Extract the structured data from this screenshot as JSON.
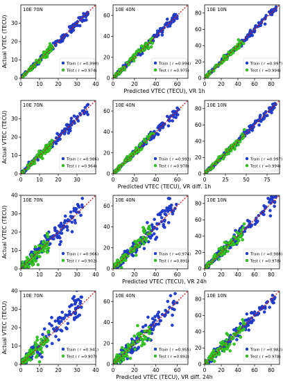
{
  "figure": {
    "rows": [
      {
        "xlabel": "Predicted VTEC (TECU), VR 1h"
      },
      {
        "xlabel": "Predicted VTEC (TECU), VR diff. 1h"
      },
      {
        "xlabel": "Predicted VTEC (TECU), VR 24h"
      },
      {
        "xlabel": "Predicted VTEC (TECU), VR diff. 24h"
      }
    ],
    "ylabel": "Actual VTEC (TECU)",
    "legend_train": "Train",
    "legend_test": "Test",
    "colors": {
      "train": "#1f3fd6",
      "train_edge": "#17289a",
      "test": "#33cc22",
      "test_edge": "#1f8a12",
      "diagonal": "#cc1a1a"
    }
  },
  "chart_data": [
    {
      "type": "scatter",
      "row": 0,
      "col": 0,
      "title": "10E 70N",
      "xlim": [
        0,
        40
      ],
      "ylim": [
        0,
        40
      ],
      "xticks": [
        0,
        10,
        20,
        30,
        40
      ],
      "yticks": [
        0,
        10,
        20,
        30
      ],
      "train_max": 36,
      "test_max": 17,
      "train_spread": 1.1,
      "test_spread": 0.9,
      "train_r": "Train ( r =0.990)",
      "test_r": "Test ( r =0.974)"
    },
    {
      "type": "scatter",
      "row": 0,
      "col": 1,
      "title": "10E 40N",
      "xlim": [
        0,
        70
      ],
      "ylim": [
        0,
        70
      ],
      "xticks": [
        0,
        20,
        40,
        60
      ],
      "yticks": [
        0,
        20,
        40,
        60
      ],
      "train_max": 62,
      "test_max": 38,
      "train_spread": 1.8,
      "test_spread": 1.8,
      "train_r": "Train ( r =0.994)",
      "test_r": "Test ( r =0.975)"
    },
    {
      "type": "scatter",
      "row": 0,
      "col": 2,
      "title": "10E 10N",
      "xlim": [
        0,
        90
      ],
      "ylim": [
        0,
        90
      ],
      "xticks": [
        0,
        20,
        40,
        60,
        80
      ],
      "yticks": [
        0,
        20,
        40,
        60,
        80
      ],
      "train_max": 86,
      "test_max": 48,
      "train_spread": 2,
      "test_spread": 2.3,
      "train_r": "Train ( r =0.997)",
      "test_r": "Test ( r =0.994)"
    },
    {
      "type": "scatter",
      "row": 1,
      "col": 0,
      "title": "10E 70N",
      "xlim": [
        0,
        40
      ],
      "ylim": [
        0,
        40
      ],
      "xticks": [
        0,
        10,
        20,
        30
      ],
      "yticks": [
        0,
        10,
        20,
        30
      ],
      "train_max": 36,
      "test_max": 17,
      "train_spread": 1.3,
      "test_spread": 1.1,
      "train_r": "Train ( r =0.986)",
      "test_r": "Test ( r =0.964)"
    },
    {
      "type": "scatter",
      "row": 1,
      "col": 1,
      "title": "10E 40N",
      "xlim": [
        0,
        70
      ],
      "ylim": [
        0,
        70
      ],
      "xticks": [
        0,
        20,
        40,
        60
      ],
      "yticks": [
        0,
        20,
        40,
        60
      ],
      "train_max": 62,
      "test_max": 38,
      "train_spread": 2,
      "test_spread": 2,
      "train_r": "Train ( r =0.993)",
      "test_r": "Test ( r =0.978)"
    },
    {
      "type": "scatter",
      "row": 1,
      "col": 2,
      "title": "10E 10N",
      "xlim": [
        0,
        90
      ],
      "ylim": [
        0,
        90
      ],
      "xticks": [
        0,
        25,
        50,
        75
      ],
      "yticks": [
        0,
        20,
        40,
        60,
        80
      ],
      "train_max": 86,
      "test_max": 48,
      "train_spread": 2,
      "test_spread": 2.3,
      "train_r": "Train ( r =0.997)",
      "test_r": "Test ( r =0.994)"
    },
    {
      "type": "scatter",
      "row": 2,
      "col": 0,
      "title": "10E 70N",
      "xlim": [
        0,
        40
      ],
      "ylim": [
        0,
        40
      ],
      "xticks": [
        0,
        10,
        20,
        30,
        40
      ],
      "yticks": [
        0,
        10,
        20,
        30,
        40
      ],
      "train_max": 33,
      "test_max": 15,
      "train_spread": 3,
      "test_spread": 2.5,
      "train_r": "Train ( r =0.966)",
      "test_r": "Test ( r =0.902)"
    },
    {
      "type": "scatter",
      "row": 2,
      "col": 1,
      "title": "10E 40N",
      "xlim": [
        0,
        70
      ],
      "ylim": [
        0,
        70
      ],
      "xticks": [
        0,
        20,
        40,
        60
      ],
      "yticks": [
        0,
        20,
        40,
        60
      ],
      "train_max": 60,
      "test_max": 35,
      "train_spread": 5,
      "test_spread": 4.5,
      "train_r": "Train ( r =0.974)",
      "test_r": "Test ( r =0.891)"
    },
    {
      "type": "scatter",
      "row": 2,
      "col": 2,
      "title": "10E 10N",
      "xlim": [
        0,
        90
      ],
      "ylim": [
        0,
        90
      ],
      "xticks": [
        0,
        20,
        40,
        60,
        80
      ],
      "yticks": [
        0,
        20,
        40,
        60,
        80
      ],
      "train_max": 86,
      "test_max": 48,
      "train_spread": 5,
      "test_spread": 4.5,
      "train_r": "Train ( r =0.988)",
      "test_r": "Test ( r =0.978)"
    },
    {
      "type": "scatter",
      "row": 3,
      "col": 0,
      "title": "10E 70N",
      "xlim": [
        0,
        40
      ],
      "ylim": [
        0,
        40
      ],
      "xticks": [
        0,
        10,
        20,
        30,
        40
      ],
      "yticks": [
        0,
        10,
        20,
        30,
        40
      ],
      "train_max": 33,
      "test_max": 15,
      "train_spread": 3.4,
      "test_spread": 2.6,
      "train_r": "Train ( r =0.941)",
      "test_r": "Test ( r =0.907)"
    },
    {
      "type": "scatter",
      "row": 3,
      "col": 1,
      "title": "10E 40N",
      "xlim": [
        0,
        70
      ],
      "ylim": [
        0,
        70
      ],
      "xticks": [
        0,
        20,
        40,
        60
      ],
      "yticks": [
        0,
        20,
        40,
        60
      ],
      "train_max": 60,
      "test_max": 35,
      "train_spread": 5.5,
      "test_spread": 5,
      "train_r": "Train ( r =0.955)",
      "test_r": "Test ( r =0.892)"
    },
    {
      "type": "scatter",
      "row": 3,
      "col": 2,
      "title": "10E 10N",
      "xlim": [
        0,
        90
      ],
      "ylim": [
        0,
        90
      ],
      "xticks": [
        0,
        20,
        40,
        60,
        80
      ],
      "yticks": [
        0,
        20,
        40,
        60,
        80
      ],
      "train_max": 86,
      "test_max": 48,
      "train_spread": 5,
      "test_spread": 4.8,
      "train_r": "Train ( r =0.982)",
      "test_r": "Test ( r =0.978)"
    }
  ]
}
